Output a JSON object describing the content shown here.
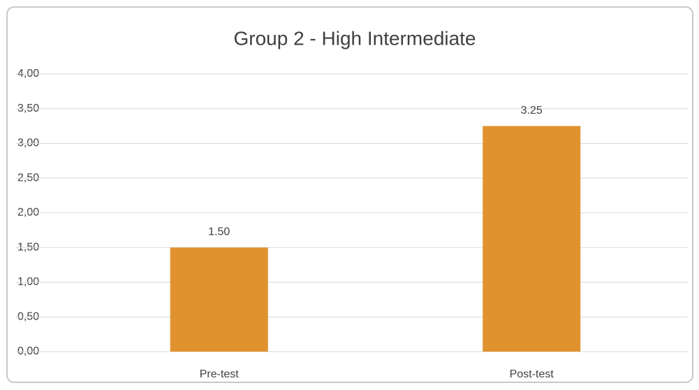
{
  "chart_data": {
    "type": "bar",
    "title": "Group 2 - High Intermediate",
    "categories": [
      "Pre-test",
      "Post-test"
    ],
    "values": [
      1.5,
      3.25
    ],
    "value_labels": [
      "1.50",
      "3.25"
    ],
    "color": "#e0922f",
    "ylim": [
      0,
      4
    ],
    "yticks": [
      {
        "value": 0,
        "label": "0,00"
      },
      {
        "value": 0.5,
        "label": "0,50"
      },
      {
        "value": 1,
        "label": "1,00"
      },
      {
        "value": 1.5,
        "label": "1,50"
      },
      {
        "value": 2,
        "label": "2,00"
      },
      {
        "value": 2.5,
        "label": "2,50"
      },
      {
        "value": 3,
        "label": "3,00"
      },
      {
        "value": 3.5,
        "label": "3,50"
      },
      {
        "value": 4,
        "label": "4,00"
      }
    ],
    "grid": true
  }
}
